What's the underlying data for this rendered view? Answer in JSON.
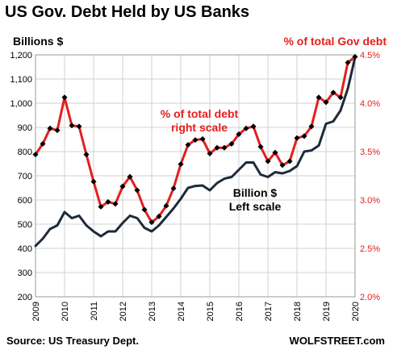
{
  "header": {
    "title": "US Gov. Debt Held by US Banks",
    "left_unit": "Billions $",
    "right_unit": "% of total Gov debt"
  },
  "footer": {
    "source": "Source: US Treasury Dept.",
    "brand": "WOLFSTREET.com"
  },
  "annotations": {
    "pct_line1": "% of total debt",
    "pct_line2": "right scale",
    "bn_line1": "Billion $",
    "bn_line2": "Left scale"
  },
  "colors": {
    "billions_series": "#1c2a3a",
    "percent_series": "#e41e1e",
    "marker": "#000000",
    "grid": "#d0d0d0"
  },
  "chart_data": {
    "type": "line",
    "title": "US Gov. Debt Held by US Banks",
    "grid": true,
    "x_ticks": [
      "2009",
      "2010",
      "2011",
      "2012",
      "2013",
      "2014",
      "2015",
      "2016",
      "2017",
      "2018",
      "2019",
      "2020"
    ],
    "xlim": [
      2009.0,
      2020.0
    ],
    "y_left": {
      "label": "Billions $",
      "lim": [
        200,
        1200
      ],
      "ticks": [
        "200",
        "300",
        "400",
        "500",
        "600",
        "700",
        "800",
        "900",
        "1,000",
        "1,100",
        "1,200"
      ]
    },
    "y_right": {
      "label": "% of total Gov debt",
      "lim": [
        2.0,
        4.5
      ],
      "ticks": [
        "2.0%",
        "2.5%",
        "3.0%",
        "3.5%",
        "4.0%",
        "4.5%"
      ]
    },
    "series": [
      {
        "name": "Billion $",
        "axis": "left",
        "markers": false,
        "x": [
          2009.0,
          2009.25,
          2009.5,
          2009.75,
          2010.0,
          2010.25,
          2010.5,
          2010.75,
          2011.0,
          2011.25,
          2011.5,
          2011.75,
          2012.0,
          2012.25,
          2012.5,
          2012.75,
          2013.0,
          2013.25,
          2013.5,
          2013.75,
          2014.0,
          2014.25,
          2014.5,
          2014.75,
          2015.0,
          2015.25,
          2015.5,
          2015.75,
          2016.0,
          2016.25,
          2016.5,
          2016.75,
          2017.0,
          2017.25,
          2017.5,
          2017.75,
          2018.0,
          2018.25,
          2018.5,
          2018.75,
          2019.0,
          2019.25,
          2019.5,
          2019.75,
          2020.0
        ],
        "values": [
          410,
          440,
          480,
          495,
          550,
          525,
          535,
          495,
          470,
          450,
          470,
          470,
          505,
          535,
          525,
          485,
          470,
          495,
          530,
          565,
          605,
          650,
          658,
          660,
          640,
          670,
          688,
          695,
          725,
          755,
          755,
          705,
          695,
          715,
          710,
          720,
          740,
          800,
          805,
          825,
          915,
          925,
          970,
          1060,
          1190
        ]
      },
      {
        "name": "% of total debt",
        "axis": "right",
        "markers": true,
        "x": [
          2009.0,
          2009.25,
          2009.5,
          2009.75,
          2010.0,
          2010.25,
          2010.5,
          2010.75,
          2011.0,
          2011.25,
          2011.5,
          2011.75,
          2012.0,
          2012.25,
          2012.5,
          2012.75,
          2013.0,
          2013.25,
          2013.5,
          2013.75,
          2014.0,
          2014.25,
          2014.5,
          2014.75,
          2015.0,
          2015.25,
          2015.5,
          2015.75,
          2016.0,
          2016.25,
          2016.5,
          2016.75,
          2017.0,
          2017.25,
          2017.5,
          2017.75,
          2018.0,
          2018.25,
          2018.5,
          2018.75,
          2019.0,
          2019.25,
          2019.5,
          2019.75,
          2020.0
        ],
        "values": [
          3.47,
          3.58,
          3.74,
          3.72,
          4.06,
          3.77,
          3.76,
          3.47,
          3.19,
          2.93,
          2.98,
          2.96,
          3.14,
          3.24,
          3.1,
          2.9,
          2.77,
          2.83,
          2.94,
          3.12,
          3.37,
          3.57,
          3.62,
          3.63,
          3.48,
          3.54,
          3.54,
          3.58,
          3.68,
          3.74,
          3.76,
          3.55,
          3.4,
          3.49,
          3.36,
          3.4,
          3.64,
          3.66,
          3.76,
          4.06,
          4.01,
          4.11,
          4.06,
          4.42,
          4.48
        ]
      }
    ]
  }
}
